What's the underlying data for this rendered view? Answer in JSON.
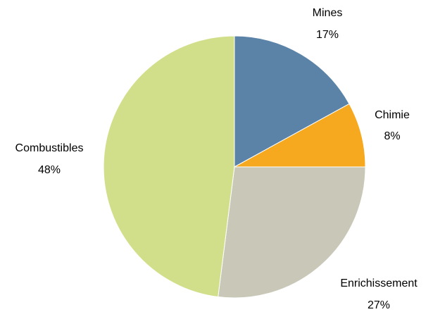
{
  "chart_data": {
    "type": "pie",
    "slices": [
      {
        "label": "Mines",
        "value": 17,
        "value_label": "17%",
        "color": "#5b83a8"
      },
      {
        "label": "Chimie",
        "value": 8,
        "value_label": "8%",
        "color": "#f6a81e"
      },
      {
        "label": "Enrichissement",
        "value": 27,
        "value_label": "27%",
        "color": "#c9c8b8"
      },
      {
        "label": "Combustibles",
        "value": 48,
        "value_label": "48%",
        "color": "#d2df8a"
      }
    ],
    "start_angle": "12 o'clock",
    "direction": "clockwise",
    "legend": "none"
  }
}
